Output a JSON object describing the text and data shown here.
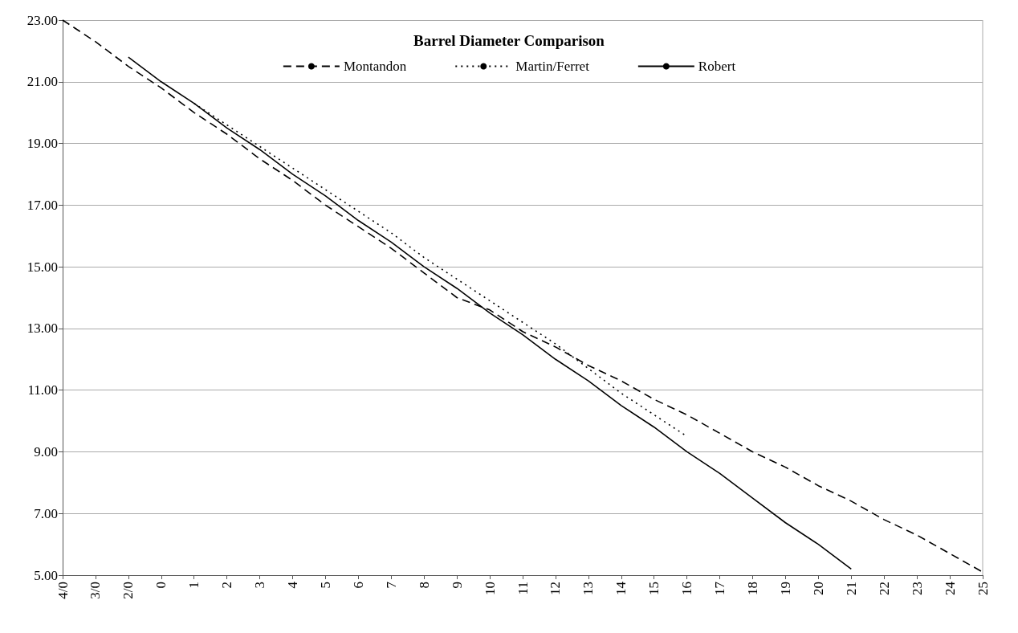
{
  "chart_data": {
    "type": "line",
    "title": "Barrel Diameter Comparison",
    "categories": [
      "4/0",
      "3/0",
      "2/0",
      "0",
      "1",
      "2",
      "3",
      "4",
      "5",
      "6",
      "7",
      "8",
      "9",
      "10",
      "11",
      "12",
      "13",
      "14",
      "15",
      "16",
      "17",
      "18",
      "19",
      "20",
      "21",
      "22",
      "23",
      "24",
      "25"
    ],
    "series": [
      {
        "name": "Montandon",
        "color": "#000000",
        "line_style": "dashed",
        "values": [
          23.0,
          22.3,
          21.5,
          20.8,
          20.0,
          19.3,
          18.5,
          17.8,
          17.0,
          16.3,
          15.6,
          14.8,
          14.0,
          13.6,
          12.9,
          12.4,
          11.8,
          11.3,
          10.7,
          10.2,
          9.6,
          9.0,
          8.5,
          7.9,
          7.4,
          6.8,
          6.3,
          5.7,
          5.1
        ]
      },
      {
        "name": "Martin/Ferret",
        "color": "#000000",
        "line_style": "dotted",
        "values": [
          null,
          null,
          null,
          null,
          20.3,
          19.6,
          18.9,
          18.2,
          17.5,
          16.8,
          16.1,
          15.3,
          14.6,
          13.9,
          13.2,
          12.5,
          11.7,
          10.9,
          10.2,
          9.5,
          null,
          null,
          null,
          null,
          null,
          null,
          null,
          null,
          null
        ]
      },
      {
        "name": "Robert",
        "color": "#000000",
        "line_style": "solid",
        "values": [
          null,
          null,
          21.8,
          21.0,
          20.3,
          19.5,
          18.8,
          18.0,
          17.3,
          16.5,
          15.8,
          15.0,
          14.3,
          13.5,
          12.8,
          12.0,
          11.3,
          10.5,
          9.8,
          9.0,
          8.3,
          7.5,
          6.7,
          6.0,
          5.2,
          null,
          null,
          null,
          null
        ]
      }
    ],
    "ylim": [
      5,
      23
    ],
    "yticks": [
      {
        "value": 5,
        "label": "5.00"
      },
      {
        "value": 7,
        "label": "7.00"
      },
      {
        "value": 9,
        "label": "9.00"
      },
      {
        "value": 11,
        "label": "11.00"
      },
      {
        "value": 13,
        "label": "13.00"
      },
      {
        "value": 15,
        "label": "15.00"
      },
      {
        "value": 17,
        "label": "17.00"
      },
      {
        "value": 19,
        "label": "19.00"
      },
      {
        "value": 21,
        "label": "21.00"
      },
      {
        "value": 23,
        "label": "23.00"
      }
    ],
    "grid": "y",
    "legend": "top",
    "marker": "none"
  }
}
